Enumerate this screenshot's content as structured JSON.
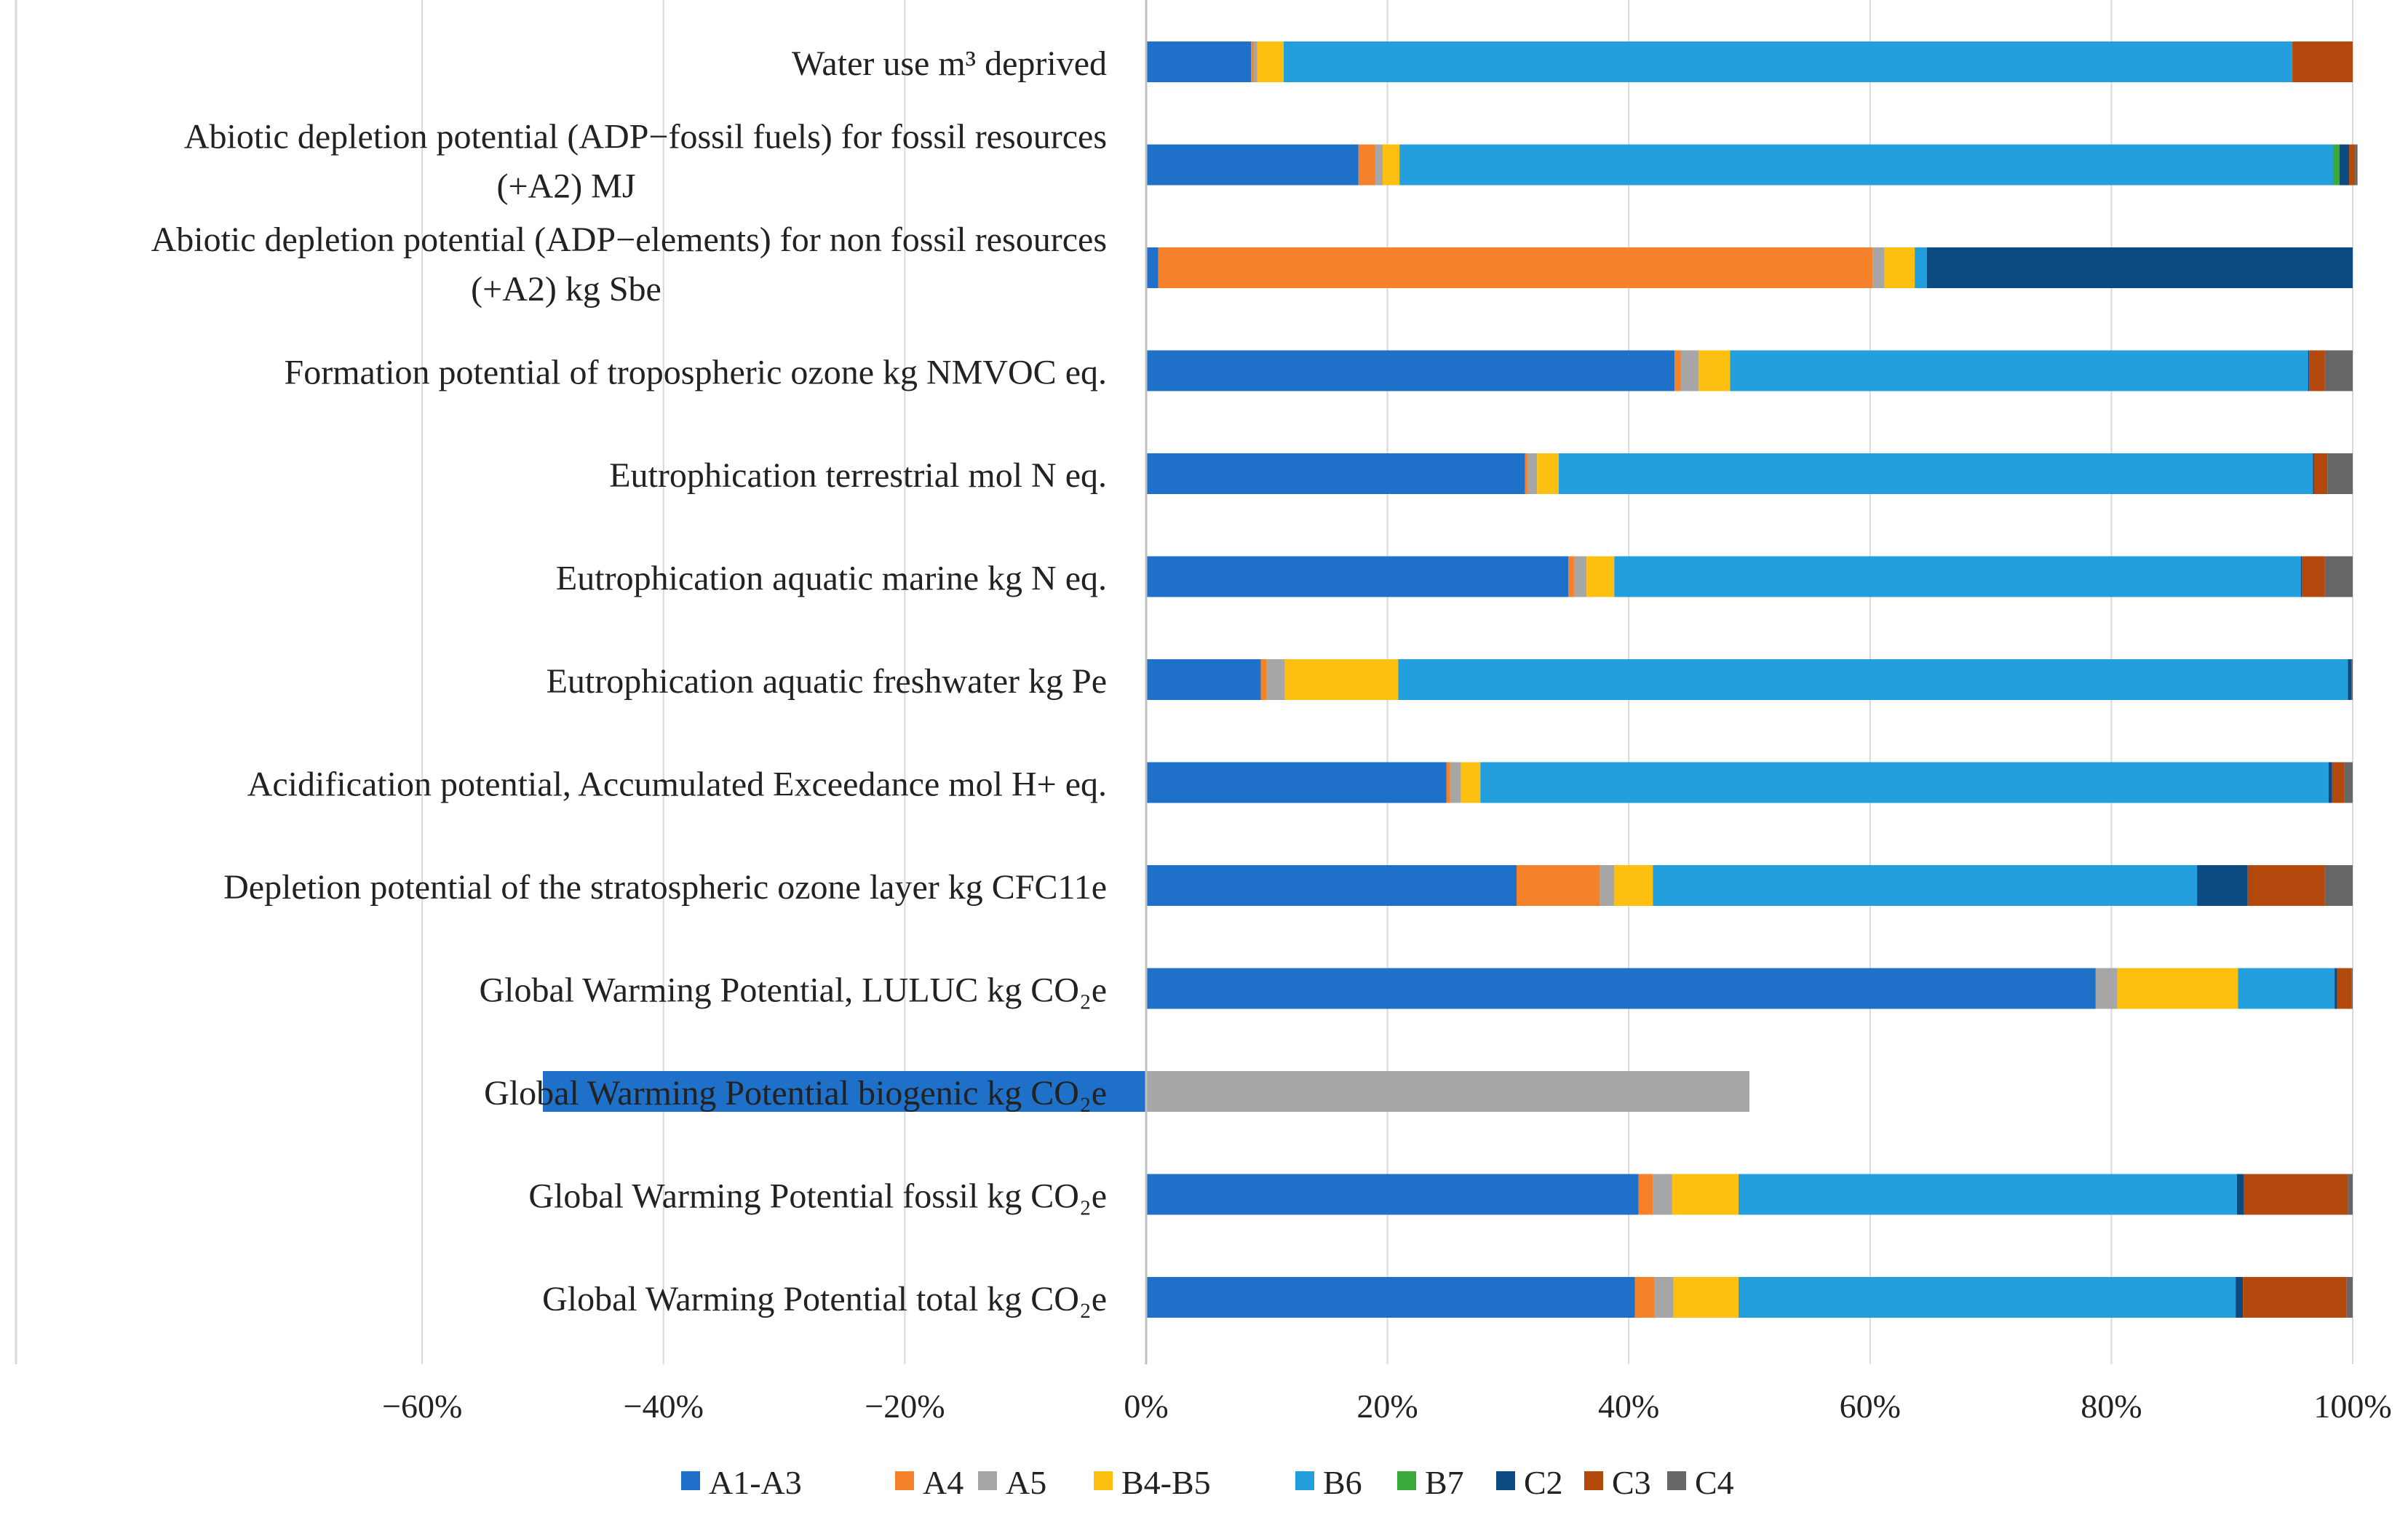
{
  "chart_data": {
    "type": "bar",
    "orientation": "horizontal",
    "stacked": true,
    "title": "",
    "xlabel": "",
    "ylabel": "",
    "xlim": [
      -60,
      100
    ],
    "x_ticks": [
      "−60%",
      "−40%",
      "−20%",
      "0%",
      "20%",
      "40%",
      "60%",
      "80%",
      "100%"
    ],
    "grid": true,
    "legend_position": "bottom",
    "categories": [
      {
        "lines": [
          "Water use m³ deprived"
        ]
      },
      {
        "lines": [
          "Abiotic depletion potential (ADP−fossil fuels) for fossil resources",
          "(+A2) MJ"
        ]
      },
      {
        "lines": [
          "Abiotic depletion potential (ADP−elements) for non fossil resources",
          "(+A2) kg Sbe"
        ]
      },
      {
        "lines": [
          "Formation potential of tropospheric ozone kg NMVOC eq."
        ]
      },
      {
        "lines": [
          "Eutrophication terrestrial mol N eq."
        ]
      },
      {
        "lines": [
          "Eutrophication aquatic marine kg N eq."
        ]
      },
      {
        "lines": [
          "Eutrophication aquatic freshwater kg Pe"
        ]
      },
      {
        "lines": [
          "Acidification potential, Accumulated Exceedance mol H+ eq."
        ]
      },
      {
        "lines": [
          "Depletion potential of the stratospheric ozone layer kg CFC11e"
        ]
      },
      {
        "lines": [
          "Global Warming Potential, LULUC kg CO₂e"
        ]
      },
      {
        "lines": [
          "Global Warming Potential biogenic kg CO₂e"
        ]
      },
      {
        "lines": [
          "Global Warming Potential fossil kg CO₂e"
        ]
      },
      {
        "lines": [
          "Global Warming Potential total kg CO₂e"
        ]
      }
    ],
    "series": [
      {
        "name": "A1-A3",
        "color": "#1f70c8",
        "values": [
          8.7,
          17.6,
          1.0,
          43.8,
          31.4,
          35.0,
          9.5,
          24.9,
          30.7,
          78.7,
          -50.0,
          40.8,
          40.5
        ]
      },
      {
        "name": "A4",
        "color": "#f5822a",
        "values": [
          0.2,
          1.4,
          59.2,
          0.5,
          0.2,
          0.5,
          0.5,
          0.3,
          6.9,
          0,
          0,
          1.2,
          1.6
        ]
      },
      {
        "name": "A5",
        "color": "#a6a6a6",
        "values": [
          0.3,
          0.6,
          1.0,
          1.5,
          0.8,
          1.0,
          1.5,
          0.9,
          1.2,
          1.8,
          50.0,
          1.6,
          1.6
        ]
      },
      {
        "name": "B4-B5",
        "color": "#fdc010",
        "values": [
          2.2,
          1.4,
          2.5,
          2.6,
          1.8,
          2.3,
          9.4,
          1.6,
          3.2,
          10.0,
          0,
          5.5,
          5.4
        ]
      },
      {
        "name": "B6",
        "color": "#229fdc",
        "values": [
          83.6,
          77.4,
          1.0,
          47.9,
          62.5,
          56.9,
          78.7,
          70.3,
          45.1,
          8.0,
          0,
          41.3,
          41.2
        ]
      },
      {
        "name": "B7",
        "color": "#3aaa3a",
        "values": [
          0,
          0.5,
          0,
          0,
          0,
          0,
          0,
          0,
          0,
          0,
          0,
          0,
          0
        ]
      },
      {
        "name": "C2",
        "color": "#0c4a82",
        "values": [
          0,
          0.8,
          35.3,
          0.1,
          0.1,
          0.1,
          0.3,
          0.3,
          4.2,
          0.2,
          0,
          0.6,
          0.6
        ]
      },
      {
        "name": "C3",
        "color": "#b4490d",
        "values": [
          5.0,
          0.5,
          0,
          1.3,
          1.1,
          1.9,
          0,
          1.0,
          6.4,
          1.2,
          0,
          8.6,
          8.6
        ]
      },
      {
        "name": "C4",
        "color": "#676767",
        "values": [
          0,
          0.2,
          0,
          2.3,
          2.1,
          2.3,
          0.1,
          0.7,
          2.3,
          0.1,
          0,
          0.4,
          0.5
        ]
      }
    ]
  }
}
